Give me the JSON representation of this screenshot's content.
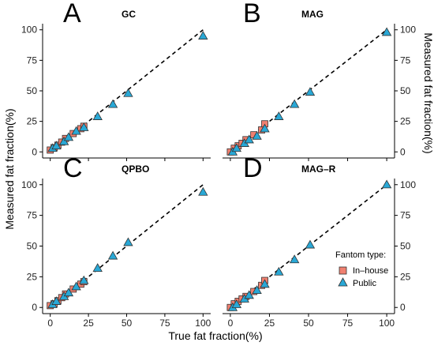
{
  "chart_data": {
    "type": "scatter",
    "xlabel": "True fat fraction(%)",
    "ylabel": "Measured fat fraction(%)",
    "xlim": [
      -5,
      105
    ],
    "ylim": [
      -5,
      105
    ],
    "xticks": [
      0,
      25,
      50,
      75,
      100
    ],
    "yticks": [
      0,
      25,
      50,
      75,
      100
    ],
    "grid": false,
    "legend": {
      "title": "Fantom type:",
      "placement": "bottom-right of panel D",
      "entries": [
        {
          "name": "In–house",
          "marker": "square",
          "color": "#F08070"
        },
        {
          "name": "Public",
          "marker": "triangle",
          "color": "#29A8D6"
        }
      ]
    },
    "reference_line": {
      "style": "dashed",
      "x": [
        0,
        100
      ],
      "y": [
        0,
        100
      ]
    },
    "panels": [
      {
        "letter": "A",
        "title": "GC",
        "series": [
          {
            "name": "In–house",
            "x": [
              0,
              2.5,
              5,
              7.5,
              10,
              15,
              20,
              22
            ],
            "y": [
              1.5,
              3.5,
              5.5,
              8,
              11,
              15,
              19,
              21
            ]
          },
          {
            "name": "Public",
            "x": [
              1.5,
              4,
              9,
              12,
              17,
              22,
              31,
              41,
              51,
              100
            ],
            "y": [
              3,
              5,
              8.5,
              12,
              17,
              20,
              29,
              39,
              48,
              95
            ]
          }
        ]
      },
      {
        "letter": "B",
        "title": "MAG",
        "series": [
          {
            "name": "In–house",
            "x": [
              0,
              2.5,
              5,
              7.5,
              10,
              15,
              20,
              22
            ],
            "y": [
              0,
              3,
              5,
              7,
              10,
              14,
              18,
              23
            ]
          },
          {
            "name": "Public",
            "x": [
              1.5,
              4,
              9,
              12,
              17,
              22,
              31,
              41,
              51,
              100
            ],
            "y": [
              0,
              3,
              7,
              10,
              13,
              19,
              29,
              39,
              49,
              98
            ]
          }
        ]
      },
      {
        "letter": "C",
        "title": "QPBO",
        "series": [
          {
            "name": "In–house",
            "x": [
              0,
              2.5,
              5,
              7.5,
              10,
              15,
              20,
              22
            ],
            "y": [
              1.5,
              3,
              5.5,
              8,
              11,
              15,
              19,
              21
            ]
          },
          {
            "name": "Public",
            "x": [
              1.5,
              4,
              9,
              12,
              17,
              22,
              31,
              41,
              51,
              100
            ],
            "y": [
              2.5,
              5,
              9,
              12,
              17,
              22,
              32,
              42,
              53,
              94
            ]
          }
        ]
      },
      {
        "letter": "D",
        "title": "MAG–R",
        "series": [
          {
            "name": "In–house",
            "x": [
              0,
              2.5,
              5,
              7.5,
              10,
              15,
              20,
              22
            ],
            "y": [
              0,
              3,
              5,
              7,
              9,
              13,
              18,
              22
            ]
          },
          {
            "name": "Public",
            "x": [
              1.5,
              4,
              9,
              12,
              17,
              22,
              31,
              41,
              51,
              100
            ],
            "y": [
              0,
              2.5,
              7,
              10,
              14,
              19,
              29,
              39,
              51,
              100
            ]
          }
        ]
      }
    ]
  }
}
